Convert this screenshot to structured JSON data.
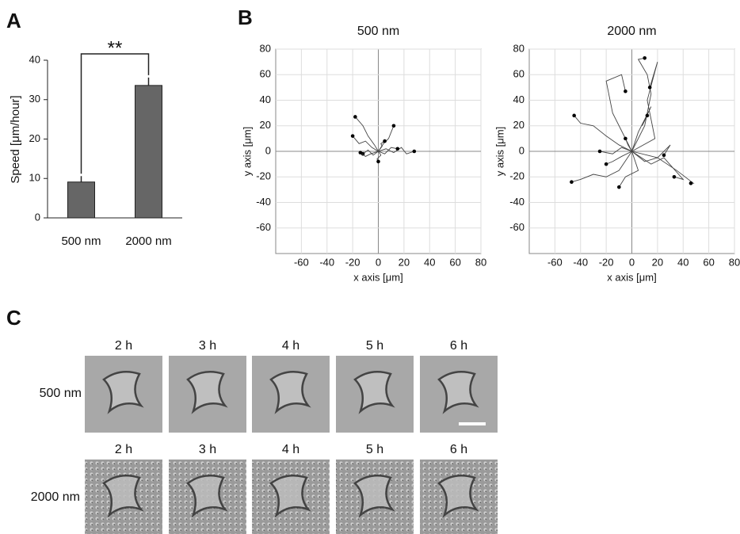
{
  "panel_labels": [
    "A",
    "B",
    "C"
  ],
  "chart_data": [
    {
      "type": "bar",
      "ylabel": "Speed  [μm/hour]",
      "categories": [
        "500 nm",
        "2000 nm"
      ],
      "values": [
        9.1,
        33.6
      ],
      "errors": [
        1.5,
        2.0
      ],
      "color": "#666666",
      "ylim": [
        0,
        40
      ],
      "yticks": [
        0,
        10,
        20,
        30,
        40
      ],
      "annotation": "**"
    },
    {
      "type": "line",
      "title": "500 nm",
      "xlabel": "x axis [μm]",
      "ylabel": "y axis [μm]",
      "xlim": [
        -80,
        80
      ],
      "ylim": [
        -80,
        80
      ],
      "xticks": [
        -60,
        -40,
        -20,
        0,
        20,
        40,
        60,
        80
      ],
      "yticks": [
        -60,
        -40,
        -20,
        0,
        20,
        40,
        60,
        80
      ],
      "grid": true,
      "color": "#444444",
      "series": [
        {
          "x": [
            0,
            -3,
            -8,
            -12,
            -18
          ],
          "values": [
            0,
            5,
            12,
            20,
            27
          ]
        },
        {
          "x": [
            0,
            -5,
            -10,
            -15,
            -20
          ],
          "values": [
            0,
            3,
            8,
            6,
            12
          ]
        },
        {
          "x": [
            0,
            4,
            8,
            10,
            12
          ],
          "values": [
            0,
            6,
            10,
            15,
            20
          ]
        },
        {
          "x": [
            0,
            6,
            12,
            18,
            22,
            28
          ],
          "values": [
            0,
            2,
            -1,
            3,
            -2,
            0
          ]
        },
        {
          "x": [
            0,
            -4,
            -8,
            -12
          ],
          "values": [
            0,
            -3,
            1,
            -2
          ]
        },
        {
          "x": [
            0,
            3,
            2,
            5
          ],
          "values": [
            0,
            4,
            6,
            8
          ]
        },
        {
          "x": [
            0,
            2,
            -1,
            0
          ],
          "values": [
            0,
            -3,
            -6,
            -8
          ]
        },
        {
          "x": [
            0,
            5,
            10,
            15
          ],
          "values": [
            0,
            -2,
            3,
            2
          ]
        },
        {
          "x": [
            0,
            -6,
            -10,
            -14
          ],
          "values": [
            0,
            -2,
            -4,
            -1
          ]
        }
      ]
    },
    {
      "type": "line",
      "title": "2000 nm",
      "xlabel": "x axis [μm]",
      "ylabel": "y axis [μm]",
      "xlim": [
        -80,
        80
      ],
      "ylim": [
        -80,
        80
      ],
      "xticks": [
        -60,
        -40,
        -20,
        0,
        20,
        40,
        60,
        80
      ],
      "yticks": [
        -60,
        -40,
        -20,
        0,
        20,
        40,
        60,
        80
      ],
      "grid": true,
      "color": "#444444",
      "series": [
        {
          "x": [
            0,
            -10,
            -20,
            -30,
            -40,
            -45
          ],
          "values": [
            0,
            5,
            12,
            20,
            22,
            28
          ]
        },
        {
          "x": [
            0,
            -10,
            -20,
            -30,
            -40,
            -47
          ],
          "values": [
            0,
            -15,
            -20,
            -18,
            -22,
            -24
          ]
        },
        {
          "x": [
            0,
            -8,
            -15,
            -25
          ],
          "values": [
            0,
            3,
            -2,
            0
          ]
        },
        {
          "x": [
            0,
            5,
            -5,
            -10
          ],
          "values": [
            0,
            -15,
            -20,
            -28
          ]
        },
        {
          "x": [
            0,
            -8,
            -15,
            -20
          ],
          "values": [
            0,
            -4,
            -8,
            -10
          ]
        },
        {
          "x": [
            0,
            10,
            15,
            12,
            5,
            10
          ],
          "values": [
            0,
            20,
            45,
            60,
            72,
            73
          ]
        },
        {
          "x": [
            0,
            18,
            12,
            20,
            14
          ],
          "values": [
            0,
            10,
            40,
            70,
            50
          ]
        },
        {
          "x": [
            0,
            -15,
            -20,
            -8,
            -5
          ],
          "values": [
            0,
            30,
            55,
            60,
            47
          ]
        },
        {
          "x": [
            0,
            5,
            15,
            8,
            12
          ],
          "values": [
            0,
            15,
            35,
            20,
            28
          ]
        },
        {
          "x": [
            0,
            10,
            20,
            30,
            25
          ],
          "values": [
            0,
            -8,
            -5,
            5,
            -3
          ]
        },
        {
          "x": [
            0,
            15,
            25,
            40,
            33
          ],
          "values": [
            0,
            -10,
            -5,
            -22,
            -20
          ]
        },
        {
          "x": [
            0,
            20,
            35,
            48,
            46
          ],
          "values": [
            0,
            -5,
            -15,
            -25,
            -25
          ]
        },
        {
          "x": [
            0,
            -3,
            -5
          ],
          "values": [
            0,
            5,
            10
          ]
        }
      ]
    }
  ],
  "panel_c": {
    "times": [
      "2 h",
      "3 h",
      "4 h",
      "5 h",
      "6 h"
    ],
    "rows": [
      "500 nm",
      "2000 nm"
    ]
  }
}
